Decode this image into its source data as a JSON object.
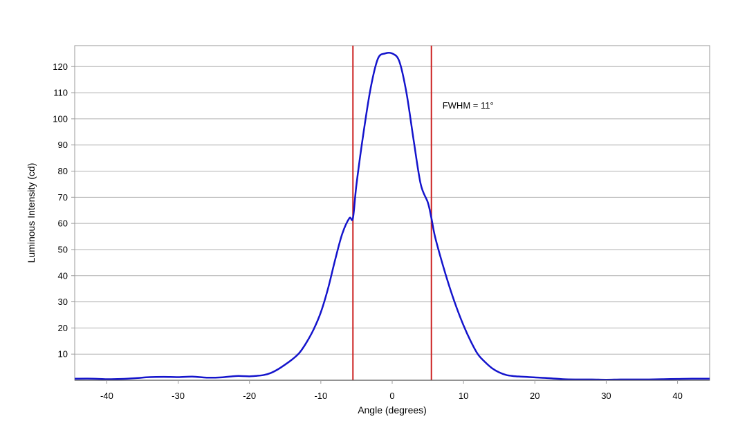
{
  "chart_data": {
    "type": "line",
    "title": "",
    "xlabel": "Angle (degrees)",
    "ylabel": "Luminous Intensity (cd)",
    "xlim": [
      -44.5,
      44.5
    ],
    "ylim": [
      0,
      128
    ],
    "xticks": [
      -40,
      -30,
      -20,
      -10,
      0,
      10,
      20,
      30,
      40
    ],
    "yticks": [
      10,
      20,
      30,
      40,
      50,
      60,
      70,
      80,
      90,
      100,
      110,
      120
    ],
    "grid": "horizontal",
    "annotation": "FWHM = 11°",
    "markers": [
      -5.5,
      5.5
    ],
    "colors": {
      "series": "#1414cc",
      "markers": "#cc2222",
      "grid": "#b0b0b0",
      "frame": "#9a9a9a"
    },
    "series": [
      {
        "x": [
          -44.5,
          -42,
          -40,
          -38,
          -36,
          -34,
          -32,
          -30,
          -28,
          -26,
          -24,
          -22,
          -21,
          -20,
          -19,
          -18,
          -17,
          -16,
          -15,
          -14,
          -13,
          -12,
          -11,
          -10,
          -9,
          -8,
          -7,
          -6,
          -5.5,
          -5,
          -4,
          -3,
          -2,
          -1,
          0,
          1,
          2,
          3,
          4,
          5,
          5.5,
          6,
          7,
          8,
          9,
          10,
          11,
          12,
          13,
          14,
          15,
          16,
          17,
          18,
          20,
          22,
          24,
          26,
          28,
          30,
          32,
          34,
          36,
          38,
          40,
          42,
          44.5
        ],
        "y": [
          0.6,
          0.6,
          0.4,
          0.5,
          0.8,
          1.2,
          1.3,
          1.2,
          1.4,
          1.0,
          1.1,
          1.6,
          1.6,
          1.5,
          1.7,
          2.0,
          2.8,
          4.2,
          6.0,
          8.0,
          10.5,
          14.5,
          19.5,
          26,
          35,
          46,
          56,
          62,
          62,
          75,
          95,
          112,
          123,
          125,
          125,
          122,
          110,
          92,
          75,
          68,
          62,
          55,
          45,
          36,
          28,
          21,
          15,
          10,
          7,
          4.6,
          3.0,
          2.0,
          1.6,
          1.4,
          1.1,
          0.8,
          0.4,
          0.3,
          0.3,
          0.2,
          0.3,
          0.3,
          0.3,
          0.4,
          0.5,
          0.6,
          0.6
        ]
      }
    ]
  }
}
